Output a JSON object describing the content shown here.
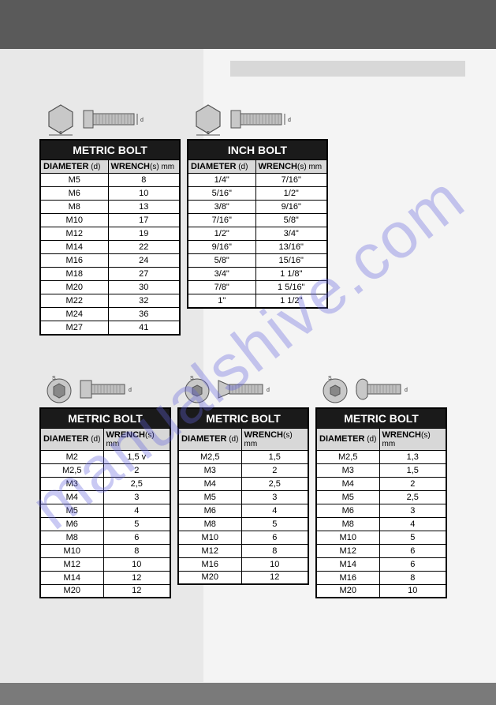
{
  "watermark": "manualshive.com",
  "tables": {
    "metric_hex": {
      "title": "METRIC BOLT",
      "h1": "<b>DIAMETER</b> (d)",
      "h2": "<b>WRENCH</b>(s) mm",
      "rows": [
        [
          "M5",
          "8"
        ],
        [
          "M6",
          "10"
        ],
        [
          "M8",
          "13"
        ],
        [
          "M10",
          "17"
        ],
        [
          "M12",
          "19"
        ],
        [
          "M14",
          "22"
        ],
        [
          "M16",
          "24"
        ],
        [
          "M18",
          "27"
        ],
        [
          "M20",
          "30"
        ],
        [
          "M22",
          "32"
        ],
        [
          "M24",
          "36"
        ],
        [
          "M27",
          "41"
        ]
      ]
    },
    "inch_hex": {
      "title": "INCH BOLT",
      "h1": "<b>DIAMETER</b> (d)",
      "h2": "<b>WRENCH</b>(s) mm",
      "rows": [
        [
          "1/4\"",
          "7/16\""
        ],
        [
          "5/16\"",
          "1/2\""
        ],
        [
          "3/8\"",
          "9/16\""
        ],
        [
          "7/16\"",
          "5/8\""
        ],
        [
          "1/2\"",
          "3/4\""
        ],
        [
          "9/16\"",
          "13/16\""
        ],
        [
          "5/8\"",
          "15/16\""
        ],
        [
          "3/4\"",
          "1 1/8\""
        ],
        [
          "7/8\"",
          "1 5/16\""
        ],
        [
          "1\"",
          "1 1/2\""
        ]
      ]
    },
    "socket1": {
      "title": "METRIC BOLT",
      "h1": "<b>DIAMETER</b> (d)",
      "h2": "<b>WRENCH</b>(s) mm",
      "rows": [
        [
          "M2",
          "1,5 v"
        ],
        [
          "M2,5",
          "2"
        ],
        [
          "M3",
          "2,5"
        ],
        [
          "M4",
          "3"
        ],
        [
          "M5",
          "4"
        ],
        [
          "M6",
          "5"
        ],
        [
          "M8",
          "6"
        ],
        [
          "M10",
          "8"
        ],
        [
          "M12",
          "10"
        ],
        [
          "M14",
          "12"
        ],
        [
          "M20",
          "12"
        ]
      ]
    },
    "socket2": {
      "title": "METRIC BOLT",
      "h1": "<b>DIAMETER</b> (d)",
      "h2": "<b>WRENCH</b>(s) mm",
      "rows": [
        [
          "M2,5",
          "1,5"
        ],
        [
          "M3",
          "2"
        ],
        [
          "M4",
          "2,5"
        ],
        [
          "M5",
          "3"
        ],
        [
          "M6",
          "4"
        ],
        [
          "M8",
          "5"
        ],
        [
          "M10",
          "6"
        ],
        [
          "M12",
          "8"
        ],
        [
          "M16",
          "10"
        ],
        [
          "M20",
          "12"
        ]
      ]
    },
    "socket3": {
      "title": "METRIC BOLT",
      "h1": "<b>DIAMETER</b> (d)",
      "h2": "<b>WRENCH</b>(s) mm",
      "rows": [
        [
          "M2,5",
          "1,3"
        ],
        [
          "M3",
          "1,5"
        ],
        [
          "M4",
          "2"
        ],
        [
          "M5",
          "2,5"
        ],
        [
          "M6",
          "3"
        ],
        [
          "M8",
          "4"
        ],
        [
          "M10",
          "5"
        ],
        [
          "M12",
          "6"
        ],
        [
          "M14",
          "6"
        ],
        [
          "M16",
          "8"
        ],
        [
          "M20",
          "10"
        ]
      ]
    }
  }
}
